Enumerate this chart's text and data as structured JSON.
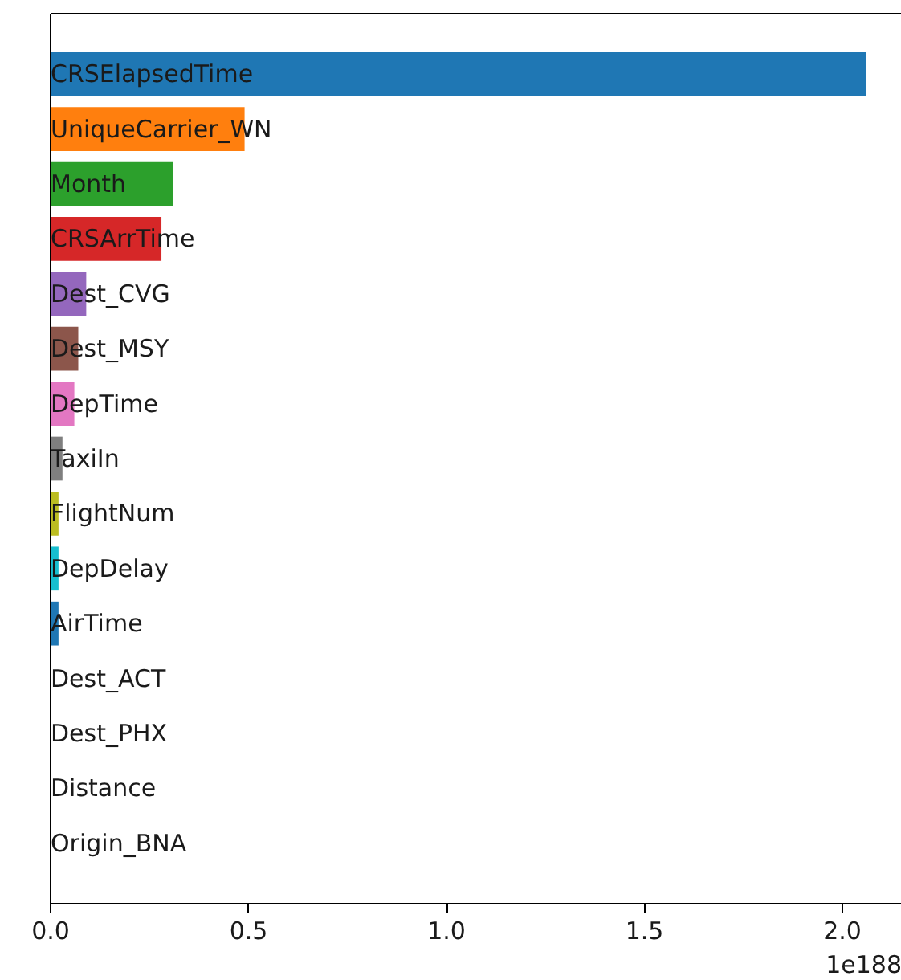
{
  "chart_data": {
    "type": "bar",
    "orientation": "horizontal",
    "categories": [
      "CRSElapsedTime",
      "UniqueCarrier_WN",
      "Month",
      "CRSArrTime",
      "Dest_CVG",
      "Dest_MSY",
      "DepTime",
      "TaxiIn",
      "FlightNum",
      "DepDelay",
      "AirTime",
      "Dest_ACT",
      "Dest_PHX",
      "Distance",
      "Origin_BNA"
    ],
    "values": [
      2.06,
      0.49,
      0.31,
      0.28,
      0.09,
      0.07,
      0.06,
      0.03,
      0.02,
      0.02,
      0.02,
      0,
      0,
      0,
      0
    ],
    "colors": [
      "#1f77b4",
      "#ff7f0e",
      "#2ca02c",
      "#d62728",
      "#9467bd",
      "#8c564b",
      "#e377c2",
      "#7f7f7f",
      "#bcbd22",
      "#17becf",
      "#1f77b4",
      "#ff7f0e",
      "#2ca02c",
      "#d62728",
      "#9467bd"
    ],
    "xlim": [
      0,
      2.15
    ],
    "xticks": [
      {
        "value": 0,
        "label": "0.0"
      },
      {
        "value": 0.5,
        "label": "0.5"
      },
      {
        "value": 1,
        "label": "1.0"
      },
      {
        "value": 1.5,
        "label": "1.5"
      },
      {
        "value": 2,
        "label": "2.0"
      }
    ],
    "annotations": [
      "1e188"
    ],
    "tick_labels": "x"
  }
}
